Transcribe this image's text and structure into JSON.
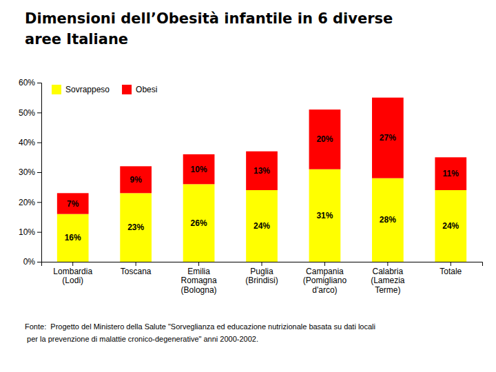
{
  "chart_data": {
    "type": "bar",
    "title": "Dimensioni dell’Obesità infantile in 6 diverse\naree Italiane",
    "categories": [
      "Lombardia\n(Lodi)",
      "Toscana",
      "Emilia\nRomagna\n(Bologna)",
      "Puglia\n(Brindisi)",
      "Campania\n(Pomigliano\nd'arco)",
      "Calabria\n(Lamezia\nTerme)",
      "Totale"
    ],
    "series": [
      {
        "name": "Sovrappeso",
        "color": "#FFFF00",
        "values": [
          16,
          23,
          26,
          24,
          31,
          28,
          24
        ],
        "value_labels": [
          "16%",
          "23%",
          "26%",
          "24%",
          "31%",
          "28%",
          "24%"
        ]
      },
      {
        "name": "Obesi",
        "color": "#FF0000",
        "values": [
          7,
          9,
          10,
          13,
          20,
          27,
          11
        ],
        "value_labels": [
          "7%",
          "9%",
          "10%",
          "13%",
          "20%",
          "27%",
          "11%"
        ]
      }
    ],
    "stacked": true,
    "data_labels": true,
    "ylim": [
      0,
      60
    ],
    "yticks": [
      {
        "value": 0,
        "label": "0%"
      },
      {
        "value": 10,
        "label": "10%"
      },
      {
        "value": 20,
        "label": "20%"
      },
      {
        "value": 30,
        "label": "30%"
      },
      {
        "value": 40,
        "label": "40%"
      },
      {
        "value": 50,
        "label": "50%"
      },
      {
        "value": 60,
        "label": "60%"
      }
    ],
    "grid": false,
    "legend": "upper left",
    "annotations": [
      "Fonte:  Progetto del Ministero della Salute \"Sorveglianza ed educazione nutrizionale basata su dati locali",
      " per la prevenzione di malattie cronico-degenerative\" anni 2000-2002."
    ]
  }
}
